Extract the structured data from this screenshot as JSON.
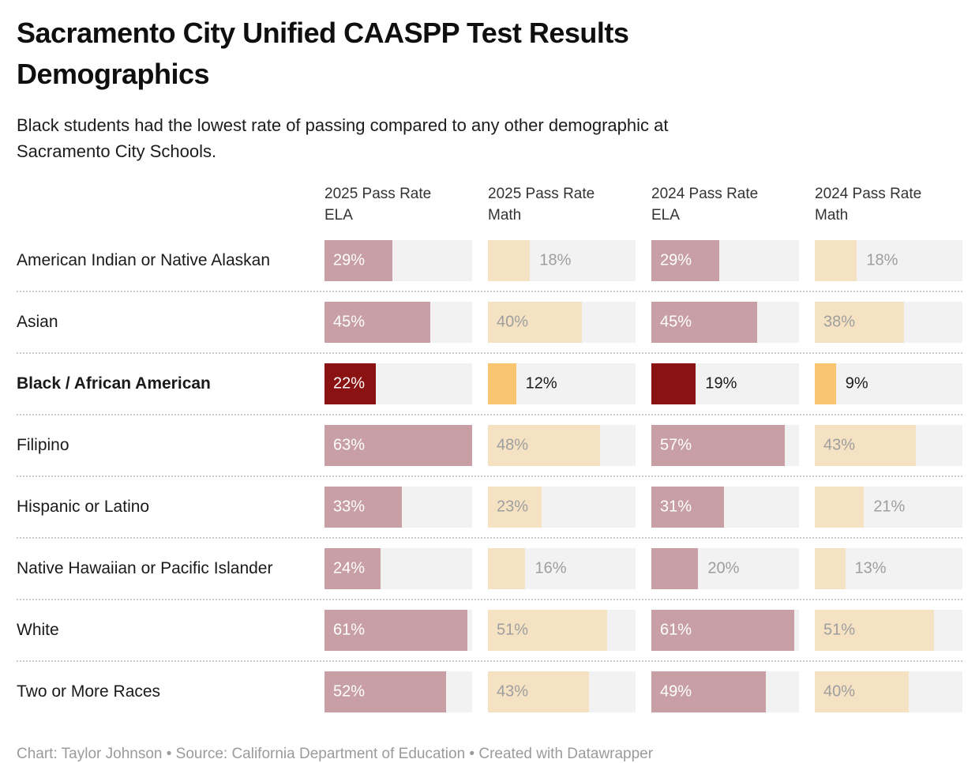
{
  "chart": {
    "title": "Sacramento City Unified CAASPP Test Results\nDemographics",
    "subtitle": "Black students had the lowest rate of passing compared to any other demographic at\nSacramento City Schools.",
    "footer": "Chart: Taylor Johnson • Source: California Department of Education • Created with Datawrapper"
  },
  "chart_data": {
    "type": "bar",
    "title": "Sacramento City Unified CAASPP Test Results Demographics",
    "subtitle": "Black students had the lowest rate of passing compared to any other demographic at Sacramento City Schools.",
    "value_suffix": "%",
    "scale_max": 63,
    "xlim": [
      0,
      63
    ],
    "columns": [
      {
        "id": "ela_2025",
        "label": "2025 Pass Rate\nELA",
        "subject": "ela"
      },
      {
        "id": "math_2025",
        "label": "2025 Pass Rate\nMath",
        "subject": "math"
      },
      {
        "id": "ela_2024",
        "label": "2024 Pass Rate\nELA",
        "subject": "ela"
      },
      {
        "id": "math_2024",
        "label": "2024 Pass Rate\nMath",
        "subject": "math"
      }
    ],
    "rows": [
      {
        "label": "American Indian or Native Alaskan",
        "highlight": false,
        "values": [
          29,
          18,
          29,
          18
        ]
      },
      {
        "label": "Asian",
        "highlight": false,
        "values": [
          45,
          40,
          45,
          38
        ]
      },
      {
        "label": "Black / African American",
        "highlight": true,
        "values": [
          22,
          12,
          19,
          9
        ]
      },
      {
        "label": "Filipino",
        "highlight": false,
        "values": [
          63,
          48,
          57,
          43
        ]
      },
      {
        "label": "Hispanic or Latino",
        "highlight": false,
        "values": [
          33,
          23,
          31,
          21
        ]
      },
      {
        "label": "Native Hawaiian or Pacific Islander",
        "highlight": false,
        "values": [
          24,
          16,
          20,
          13
        ]
      },
      {
        "label": "White",
        "highlight": false,
        "values": [
          61,
          51,
          61,
          51
        ]
      },
      {
        "label": "Two or More Races",
        "highlight": false,
        "values": [
          52,
          43,
          49,
          40
        ]
      }
    ],
    "colors": {
      "ela": "#c89fa5",
      "math": "#f5e2c3",
      "highlight_ela": "#8b1212",
      "highlight_math": "#f9c570",
      "track": "#f2f2f2",
      "label_on_ela": "#ffffff",
      "label_gray": "#9e9e9e",
      "label_dark": "#1a1a1a"
    },
    "legend": "none",
    "grid": "off"
  }
}
